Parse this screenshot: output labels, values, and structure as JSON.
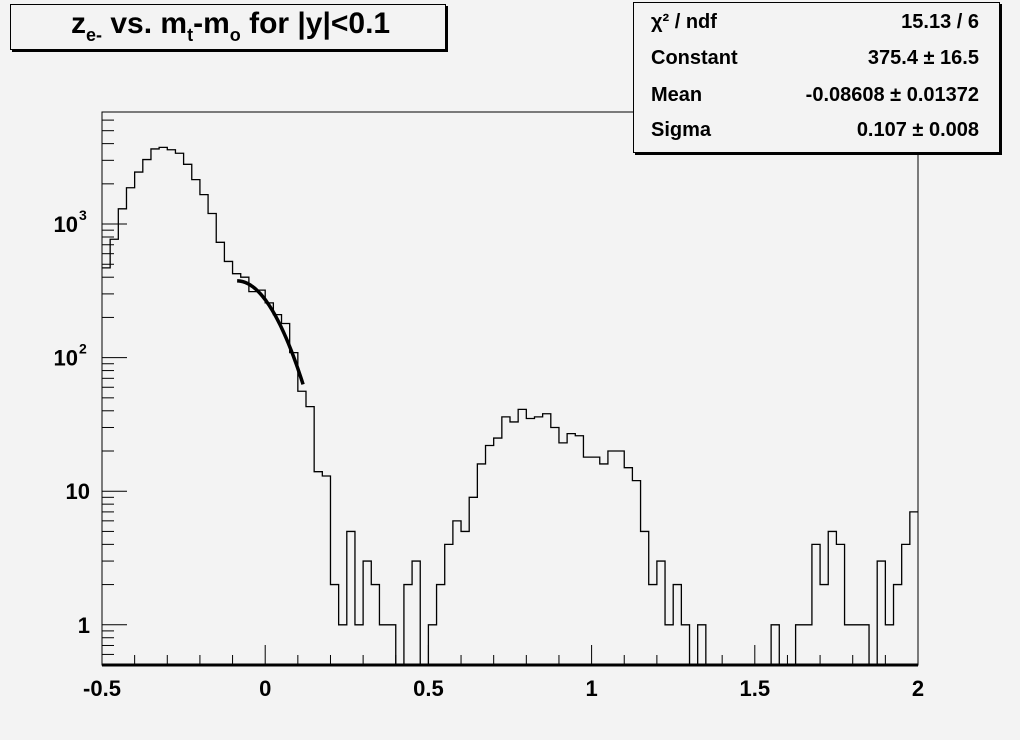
{
  "title": {
    "main": "z",
    "sub1": "e-",
    "mid": " vs. m",
    "sub2": "t",
    "mid2": "-m",
    "sub3": "o",
    "tail": " for |y|<0.1"
  },
  "stats": [
    {
      "key": "χ² / ndf",
      "value": "15.13 / 6"
    },
    {
      "key": "Constant",
      "value": "375.4 ± 16.5"
    },
    {
      "key": "Mean",
      "value": "-0.08608 ± 0.01372"
    },
    {
      "key": "Sigma",
      "value": "0.107 ± 0.008"
    }
  ],
  "chart_data": {
    "type": "histogram",
    "title": "z_e- vs. m_t-m_o for |y|<0.1",
    "xlim": [
      -0.5,
      2.0
    ],
    "ylim": [
      0.5,
      6900
    ],
    "yscale": "log",
    "bin_width": 0.025,
    "x_ticks": [
      {
        "v": -0.5,
        "label": "-0.5"
      },
      {
        "v": 0,
        "label": "0"
      },
      {
        "v": 0.5,
        "label": "0.5"
      },
      {
        "v": 1,
        "label": "1"
      },
      {
        "v": 1.5,
        "label": "1.5"
      },
      {
        "v": 2,
        "label": "2"
      }
    ],
    "y_ticks": [
      {
        "v": 1,
        "label": "1"
      },
      {
        "v": 10,
        "label": "10"
      },
      {
        "v": 100,
        "label": "10",
        "exp": "2"
      },
      {
        "v": 1000,
        "label": "10",
        "exp": "3"
      }
    ],
    "counts": [
      470,
      770,
      1300,
      1870,
      2450,
      3040,
      3650,
      3750,
      3600,
      3390,
      2800,
      2150,
      1660,
      1200,
      730,
      525,
      425,
      400,
      312,
      320,
      257,
      210,
      180,
      109,
      56,
      43,
      14,
      13,
      2,
      1,
      5,
      1,
      3,
      2,
      1,
      1,
      0,
      2,
      3,
      0,
      1,
      2,
      4,
      6,
      5,
      9,
      16,
      22,
      25,
      36,
      33,
      41,
      35,
      36,
      38,
      30,
      23,
      27,
      26,
      18,
      18,
      16,
      20,
      20,
      15,
      12,
      5,
      2,
      3,
      1,
      2,
      1,
      0,
      1,
      0,
      0,
      0,
      0,
      0,
      0,
      0,
      0,
      1,
      0,
      0,
      1,
      1,
      4,
      2,
      5,
      4,
      1,
      1,
      1,
      0,
      3,
      1,
      2,
      4,
      7
    ],
    "fit": {
      "type": "gaus",
      "constant": 375.4,
      "mean": -0.08608,
      "sigma": 0.107,
      "range": [
        -0.086,
        0.116
      ]
    },
    "grid": false,
    "colors": {
      "background": "#f3f3f3",
      "line": "#000000"
    }
  }
}
